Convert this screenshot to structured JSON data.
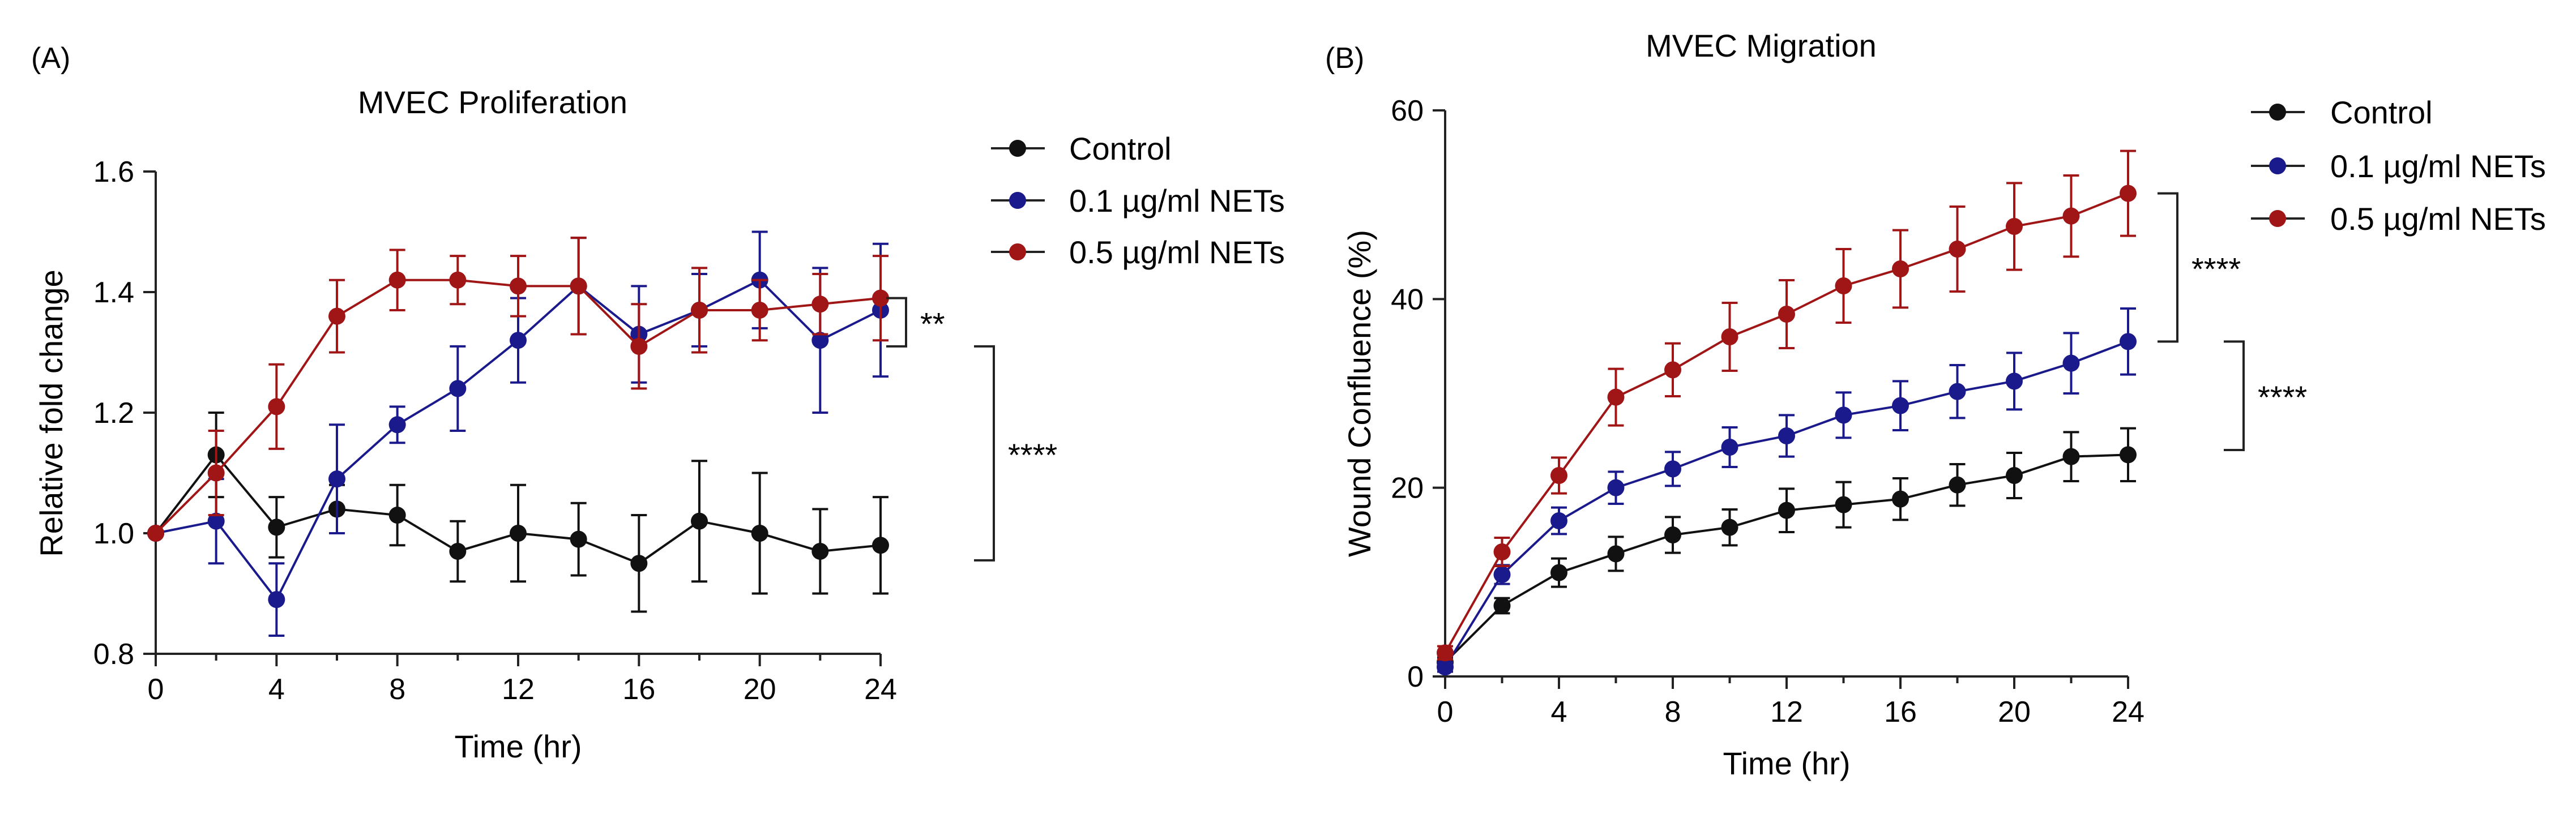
{
  "panels": [
    {
      "panel_label": "(A)",
      "legend": [
        "Control",
        "0.1 µg/ml NETs",
        "0.5 µg/ml NETs"
      ],
      "significance": [
        "**",
        "****"
      ]
    },
    {
      "panel_label": "(B)",
      "legend": [
        "Control",
        "0.1 µg/ml NETs",
        "0.5 µg/ml NETs"
      ],
      "significance": [
        "****",
        "****"
      ]
    }
  ],
  "colors": {
    "control": "#111111",
    "net01": "#1a1a8c",
    "net05": "#a01515",
    "axis": "#222222"
  },
  "chart_data": [
    {
      "type": "line",
      "title": "MVEC Proliferation",
      "xlabel": "Time (hr)",
      "ylabel": "Relative fold change",
      "xlim": [
        0,
        24
      ],
      "ylim": [
        0.8,
        1.6
      ],
      "xticks": [
        0,
        4,
        8,
        12,
        16,
        20,
        24
      ],
      "yticks": [
        0.8,
        1.0,
        1.2,
        1.4,
        1.6
      ],
      "ytick_labels": [
        "0.8",
        "1.0",
        "1.2",
        "1.4",
        "1.6"
      ],
      "x": [
        0,
        2,
        4,
        6,
        8,
        10,
        12,
        14,
        16,
        18,
        20,
        22,
        24
      ],
      "series": [
        {
          "name": "Control",
          "color_key": "control",
          "values": [
            1.0,
            1.13,
            1.01,
            1.04,
            1.03,
            0.97,
            1.0,
            0.99,
            0.95,
            1.02,
            1.0,
            0.97,
            0.98
          ],
          "errors": [
            0.0,
            0.07,
            0.05,
            0.04,
            0.05,
            0.05,
            0.08,
            0.06,
            0.08,
            0.1,
            0.1,
            0.07,
            0.08
          ]
        },
        {
          "name": "0.1 µg/ml NETs",
          "color_key": "net01",
          "values": [
            1.0,
            1.02,
            0.89,
            1.09,
            1.18,
            1.24,
            1.32,
            1.41,
            1.33,
            1.37,
            1.42,
            1.32,
            1.37
          ],
          "errors": [
            0.0,
            0.07,
            0.06,
            0.09,
            0.03,
            0.07,
            0.07,
            0.08,
            0.08,
            0.06,
            0.08,
            0.12,
            0.11
          ]
        },
        {
          "name": "0.5 µg/ml NETs",
          "color_key": "net05",
          "values": [
            1.0,
            1.1,
            1.21,
            1.36,
            1.42,
            1.42,
            1.41,
            1.41,
            1.31,
            1.37,
            1.37,
            1.38,
            1.39
          ],
          "errors": [
            0.0,
            0.07,
            0.07,
            0.06,
            0.05,
            0.04,
            0.05,
            0.08,
            0.07,
            0.07,
            0.05,
            0.05,
            0.07
          ]
        }
      ],
      "brackets": [
        {
          "label": "**",
          "y_from": 1.39,
          "y_to": 1.31
        },
        {
          "label": "****",
          "y_from": 1.31,
          "y_to": 0.955
        }
      ]
    },
    {
      "type": "line",
      "title": "MVEC Migration",
      "xlabel": "Time (hr)",
      "ylabel": "Wound Confluence (%)",
      "xlim": [
        0,
        24
      ],
      "ylim": [
        0,
        60
      ],
      "xticks": [
        0,
        4,
        8,
        12,
        16,
        20,
        24
      ],
      "yticks": [
        0,
        20,
        40,
        60
      ],
      "ytick_labels": [
        "0",
        "20",
        "40",
        "60"
      ],
      "x": [
        0,
        2,
        4,
        6,
        8,
        10,
        12,
        14,
        16,
        18,
        20,
        22,
        24
      ],
      "series": [
        {
          "name": "Control",
          "color_key": "control",
          "values": [
            1.5,
            7.5,
            11.0,
            13.0,
            15.0,
            15.8,
            17.6,
            18.2,
            18.8,
            20.3,
            21.3,
            23.3,
            23.5
          ],
          "errors": [
            0.5,
            0.8,
            1.5,
            1.8,
            1.9,
            1.9,
            2.3,
            2.4,
            2.2,
            2.2,
            2.4,
            2.6,
            2.8
          ]
        },
        {
          "name": "0.1 µg/ml NETs",
          "color_key": "net01",
          "values": [
            1.0,
            10.8,
            16.5,
            20.0,
            22.0,
            24.3,
            25.5,
            27.7,
            28.7,
            30.2,
            31.3,
            33.2,
            35.5
          ],
          "errors": [
            0.5,
            1.0,
            1.4,
            1.7,
            1.8,
            2.1,
            2.2,
            2.4,
            2.6,
            2.8,
            3.0,
            3.2,
            3.5
          ]
        },
        {
          "name": "0.5 µg/ml NETs",
          "color_key": "net05",
          "values": [
            2.5,
            13.2,
            21.3,
            29.6,
            32.5,
            36.0,
            38.4,
            41.4,
            43.2,
            45.3,
            47.7,
            48.8,
            51.2
          ],
          "errors": [
            0.7,
            1.5,
            1.9,
            3.0,
            2.8,
            3.6,
            3.6,
            3.9,
            4.1,
            4.5,
            4.6,
            4.3,
            4.5
          ]
        }
      ],
      "brackets": [
        {
          "label": "****",
          "y_from": 51.2,
          "y_to": 35.5
        },
        {
          "label": "****",
          "y_from": 35.5,
          "y_to": 24.0
        }
      ]
    }
  ]
}
